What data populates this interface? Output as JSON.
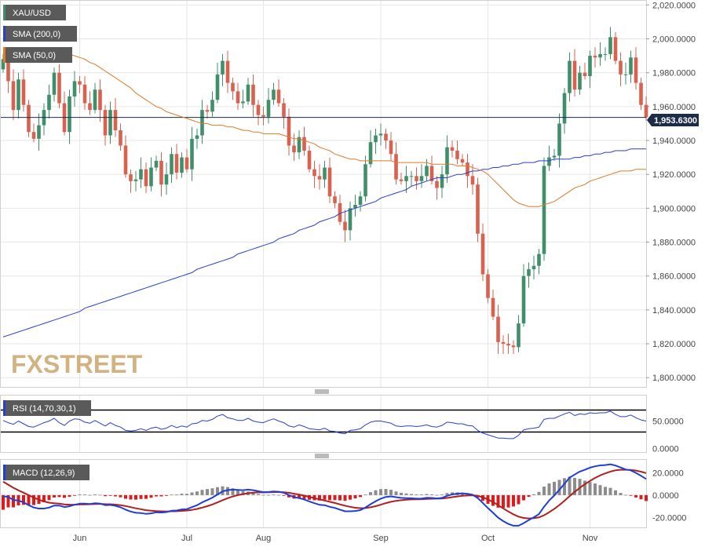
{
  "chart_data": {
    "type": "candlestick",
    "symbol": "XAU/USD",
    "watermark": "FXSTREET",
    "colors": {
      "up": "#3f8f6b",
      "down": "#d9614f",
      "sma200": "#2a3fd0",
      "sma50": "#e07a2b",
      "rsi": "#2a3fd0",
      "macd": "#1e3fd6",
      "signal": "#b02020",
      "hist_up": "#8c8c8c",
      "hist_down": "#e01a1a"
    },
    "x_months": [
      "Jun",
      "Jul",
      "Aug",
      "Sep",
      "Oct",
      "Nov"
    ],
    "price_panel": {
      "ylim": [
        1795,
        2022
      ],
      "yticks": [
        1800,
        1820,
        1840,
        1860,
        1880,
        1900,
        1920,
        1940,
        1960,
        1980,
        2000,
        2020
      ],
      "ytick_labels": [
        "1,800.0000",
        "1,820.0000",
        "1,840.0000",
        "1,860.0000",
        "1,880.0000",
        "1,900.0000",
        "1,920.0000",
        "1,940.0000",
        "1,960.0000",
        "1,980.0000",
        "2,000.0000",
        "2,020.0000"
      ],
      "last_price": 1953.63,
      "last_label": "1,953.6300",
      "legend": [
        "XAU/USD",
        "SMA (200,0)",
        "SMA (50,0)"
      ],
      "close": [
        1988,
        1975,
        1958,
        1976,
        1961,
        1945,
        1941,
        1949,
        1958,
        1967,
        1980,
        1962,
        1945,
        1966,
        1975,
        1973,
        1962,
        1958,
        1970,
        1958,
        1943,
        1958,
        1946,
        1937,
        1920,
        1916,
        1917,
        1923,
        1913,
        1924,
        1928,
        1914,
        1920,
        1932,
        1921,
        1930,
        1923,
        1941,
        1943,
        1958,
        1957,
        1964,
        1979,
        1987,
        1974,
        1969,
        1962,
        1963,
        1973,
        1961,
        1955,
        1954,
        1964,
        1970,
        1962,
        1954,
        1937,
        1933,
        1942,
        1934,
        1923,
        1919,
        1917,
        1924,
        1907,
        1903,
        1892,
        1887,
        1900,
        1902,
        1907,
        1926,
        1939,
        1943,
        1944,
        1940,
        1932,
        1917,
        1916,
        1919,
        1919,
        1916,
        1919,
        1925,
        1916,
        1912,
        1920,
        1936,
        1934,
        1929,
        1927,
        1919,
        1914,
        1885,
        1861,
        1847,
        1836,
        1821,
        1820,
        1819,
        1818,
        1832,
        1860,
        1864,
        1866,
        1873,
        1925,
        1930,
        1931,
        1950,
        1968,
        1987,
        1970,
        1980,
        1978,
        1990,
        1989,
        1991,
        1991,
        2001,
        1987,
        1979,
        1979,
        1989,
        1974,
        1961,
        1953.63
      ],
      "sma200": [
        1824,
        1825,
        1826,
        1827,
        1828,
        1829,
        1830,
        1831,
        1832,
        1833,
        1834,
        1835,
        1836,
        1837,
        1838,
        1839,
        1841,
        1842,
        1843,
        1844,
        1845,
        1846,
        1847,
        1848,
        1849,
        1850,
        1851,
        1852,
        1853,
        1854,
        1855,
        1856,
        1857,
        1858,
        1859,
        1860,
        1861,
        1862,
        1864,
        1865,
        1866,
        1867,
        1868,
        1869,
        1870,
        1871,
        1873,
        1874,
        1875,
        1876,
        1877,
        1878,
        1879,
        1880,
        1882,
        1883,
        1884,
        1885,
        1887,
        1888,
        1889,
        1890,
        1892,
        1893,
        1894,
        1895,
        1897,
        1898,
        1899,
        1900,
        1901,
        1902,
        1903,
        1904,
        1906,
        1907,
        1908,
        1909,
        1910,
        1911,
        1913,
        1914,
        1915,
        1916,
        1917,
        1918,
        1918,
        1918,
        1919,
        1920,
        1920,
        1921,
        1922,
        1922,
        1923,
        1923,
        1924,
        1924,
        1925,
        1925,
        1926,
        1926,
        1927,
        1927,
        1927,
        1928,
        1928,
        1928,
        1929,
        1929,
        1929,
        1929,
        1930,
        1930,
        1931,
        1931,
        1932,
        1932,
        1933,
        1933,
        1934,
        1934,
        1934,
        1935,
        1935,
        1935,
        1935
      ],
      "sma50": [
        1993,
        1993,
        1993,
        1993,
        1993,
        1993,
        1993,
        1993,
        1993,
        1993,
        1993,
        1992,
        1992,
        1991,
        1990,
        1989,
        1988,
        1986,
        1985,
        1983,
        1981,
        1979,
        1977,
        1975,
        1973,
        1971,
        1968,
        1966,
        1964,
        1962,
        1960,
        1959,
        1957,
        1956,
        1955,
        1954,
        1953,
        1952,
        1951,
        1950,
        1950,
        1949,
        1949,
        1949,
        1948,
        1948,
        1947,
        1946,
        1946,
        1945,
        1945,
        1944,
        1944,
        1944,
        1944,
        1943,
        1942,
        1941,
        1941,
        1940,
        1939,
        1938,
        1936,
        1935,
        1934,
        1932,
        1931,
        1930,
        1929,
        1929,
        1928,
        1928,
        1928,
        1928,
        1928,
        1928,
        1928,
        1927,
        1927,
        1927,
        1927,
        1927,
        1927,
        1927,
        1926,
        1926,
        1926,
        1926,
        1926,
        1925,
        1925,
        1925,
        1924,
        1923,
        1922,
        1920,
        1917,
        1914,
        1911,
        1908,
        1905,
        1903,
        1902,
        1901,
        1901,
        1901,
        1902,
        1903,
        1904,
        1906,
        1908,
        1910,
        1912,
        1913,
        1914,
        1916,
        1917,
        1918,
        1919,
        1920,
        1921,
        1922,
        1922,
        1922,
        1923,
        1923,
        1923
      ]
    },
    "rsi_panel": {
      "legend": "RSI (14,70,30,1)",
      "ylim": [
        -5,
        95
      ],
      "levels": [
        70,
        30
      ],
      "yticks": [
        0,
        50
      ],
      "ytick_labels": [
        "0.0000",
        "50.0000"
      ],
      "values": [
        51,
        47,
        44,
        50,
        45,
        40,
        39,
        43,
        47,
        50,
        55,
        47,
        42,
        50,
        54,
        53,
        48,
        46,
        51,
        46,
        41,
        47,
        42,
        39,
        33,
        32,
        33,
        36,
        33,
        37,
        39,
        35,
        37,
        42,
        38,
        41,
        39,
        45,
        46,
        51,
        50,
        53,
        59,
        62,
        56,
        54,
        51,
        51,
        55,
        50,
        48,
        47,
        51,
        54,
        50,
        47,
        41,
        39,
        43,
        40,
        36,
        35,
        34,
        37,
        32,
        31,
        28,
        27,
        33,
        34,
        36,
        43,
        48,
        50,
        50,
        48,
        46,
        41,
        40,
        41,
        41,
        40,
        41,
        43,
        40,
        39,
        42,
        48,
        47,
        45,
        45,
        42,
        41,
        33,
        28,
        25,
        22,
        19,
        19,
        18,
        18,
        24,
        34,
        36,
        37,
        39,
        53,
        55,
        55,
        59,
        63,
        66,
        60,
        63,
        62,
        65,
        64,
        65,
        65,
        68,
        62,
        58,
        58,
        61,
        56,
        52,
        50
      ]
    },
    "macd_panel": {
      "legend": "MACD (12,26,9)",
      "ylim": [
        -28,
        30
      ],
      "yticks": [
        -20,
        0,
        20
      ],
      "ytick_labels": [
        "-20.0000",
        "0.0000",
        "20.0000"
      ],
      "macd": [
        -1.0,
        -1.6,
        -4.3,
        -4.8,
        -6.4,
        -8.9,
        -11.0,
        -11.9,
        -11.9,
        -11.1,
        -9.3,
        -9.3,
        -10.6,
        -9.9,
        -8.6,
        -7.6,
        -7.6,
        -7.9,
        -7.2,
        -7.5,
        -8.9,
        -8.7,
        -9.5,
        -10.8,
        -12.9,
        -14.6,
        -15.7,
        -15.9,
        -16.7,
        -16.2,
        -15.3,
        -15.5,
        -15.1,
        -13.9,
        -13.7,
        -12.7,
        -12.5,
        -10.7,
        -9.0,
        -6.4,
        -4.4,
        -2.2,
        0.6,
        3.4,
        4.5,
        4.9,
        4.6,
        4.4,
        4.9,
        4.4,
        3.5,
        2.7,
        2.8,
        3.3,
        3.0,
        2.1,
        0.1,
        -1.8,
        -2.6,
        -3.8,
        -5.6,
        -7.2,
        -8.6,
        -8.9,
        -10.4,
        -11.4,
        -12.9,
        -14.4,
        -14.4,
        -14.1,
        -13.3,
        -11.0,
        -8.1,
        -5.4,
        -3.1,
        -1.6,
        -1.1,
        -1.8,
        -2.4,
        -2.6,
        -2.8,
        -3.1,
        -3.0,
        -2.3,
        -2.5,
        -2.9,
        -2.4,
        -0.6,
        0.7,
        1.3,
        1.6,
        1.2,
        0.4,
        -2.6,
        -7.0,
        -11.5,
        -15.7,
        -20.0,
        -23.1,
        -25.6,
        -27.2,
        -27.2,
        -24.9,
        -22.2,
        -19.7,
        -16.9,
        -10.3,
        -4.7,
        -0.3,
        4.8,
        10.1,
        15.6,
        18.3,
        21.0,
        22.6,
        24.5,
        25.7,
        26.5,
        26.8,
        27.5,
        26.4,
        24.6,
        22.9,
        22.1,
        19.8,
        17.2,
        14.4
      ],
      "signal": [
        12.0,
        9.3,
        6.6,
        4.3,
        2.2,
        0.0,
        -2.2,
        -4.1,
        -5.6,
        -6.7,
        -7.2,
        -7.6,
        -8.2,
        -8.5,
        -8.5,
        -8.3,
        -8.2,
        -8.1,
        -7.9,
        -7.8,
        -8.0,
        -8.1,
        -8.4,
        -8.9,
        -9.7,
        -10.7,
        -11.7,
        -12.5,
        -13.4,
        -13.9,
        -14.2,
        -14.4,
        -14.5,
        -14.4,
        -14.3,
        -14.0,
        -13.7,
        -13.1,
        -12.3,
        -11.1,
        -9.8,
        -8.3,
        -6.5,
        -4.5,
        -2.7,
        -1.2,
        0.0,
        0.9,
        1.7,
        2.2,
        2.5,
        2.5,
        2.6,
        2.7,
        2.8,
        2.6,
        2.1,
        1.3,
        0.5,
        -0.4,
        -1.5,
        -2.6,
        -3.8,
        -4.8,
        -5.9,
        -7.0,
        -8.2,
        -9.4,
        -10.4,
        -11.2,
        -11.6,
        -11.5,
        -10.8,
        -9.8,
        -8.5,
        -7.1,
        -5.9,
        -5.1,
        -4.5,
        -4.1,
        -3.8,
        -3.7,
        -3.6,
        -3.3,
        -3.2,
        -3.1,
        -3.0,
        -2.5,
        -1.8,
        -1.2,
        -0.6,
        -0.3,
        -0.1,
        -0.6,
        -1.9,
        -3.8,
        -6.2,
        -8.9,
        -11.8,
        -14.6,
        -17.1,
        -19.1,
        -20.3,
        -20.7,
        -20.5,
        -19.8,
        -17.9,
        -15.2,
        -12.2,
        -8.8,
        -5.0,
        -0.9,
        2.9,
        6.5,
        9.7,
        12.7,
        15.3,
        17.6,
        19.4,
        21.0,
        22.1,
        22.6,
        22.6,
        22.5,
        21.9,
        20.9,
        19.6
      ]
    }
  }
}
